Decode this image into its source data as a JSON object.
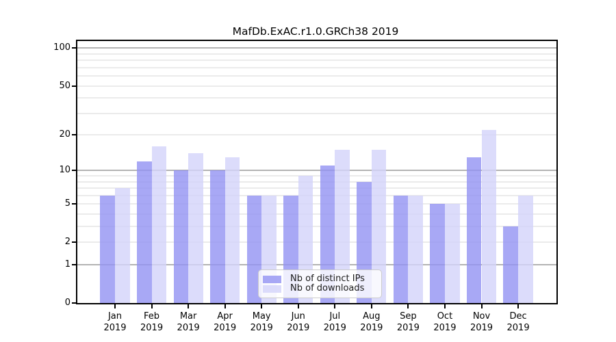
{
  "chart_data": {
    "type": "bar",
    "title": "MafDb.ExAC.r1.0.GRCh38 2019",
    "categories": [
      "Jan",
      "Feb",
      "Mar",
      "Apr",
      "May",
      "Jun",
      "Jul",
      "Aug",
      "Sep",
      "Oct",
      "Nov",
      "Dec"
    ],
    "year_label": "2019",
    "series": [
      {
        "name": "Nb of distinct IPs",
        "color": "rgba(146,146,243,0.8)",
        "values": [
          6,
          12,
          10,
          10,
          6,
          6,
          11,
          8,
          6,
          5,
          13,
          3
        ]
      },
      {
        "name": "Nb of downloads",
        "color": "rgba(211,211,250,0.8)",
        "values": [
          7,
          16,
          14,
          13,
          6,
          9,
          15,
          15,
          6,
          5,
          22,
          6
        ]
      }
    ],
    "y_axis": {
      "scale": "log1p",
      "ymin": 0,
      "ymax": 114,
      "tick_values": [
        0,
        1,
        2,
        5,
        10,
        20,
        50,
        100
      ],
      "tick_labels": [
        "0",
        "1",
        "2",
        "5",
        "10",
        "20",
        "50",
        "100"
      ],
      "major_gridlines": [
        1,
        10,
        100
      ],
      "minor_gridlines": [
        2,
        3,
        4,
        5,
        6,
        7,
        8,
        9,
        20,
        30,
        40,
        50,
        60,
        70,
        80,
        90
      ]
    },
    "legend_position": "lower center",
    "grid": true,
    "colors": {
      "major_grid": "#b3b3b3",
      "minor_grid": "#ebebeb",
      "spine": "#000000",
      "background": "#ffffff"
    }
  }
}
